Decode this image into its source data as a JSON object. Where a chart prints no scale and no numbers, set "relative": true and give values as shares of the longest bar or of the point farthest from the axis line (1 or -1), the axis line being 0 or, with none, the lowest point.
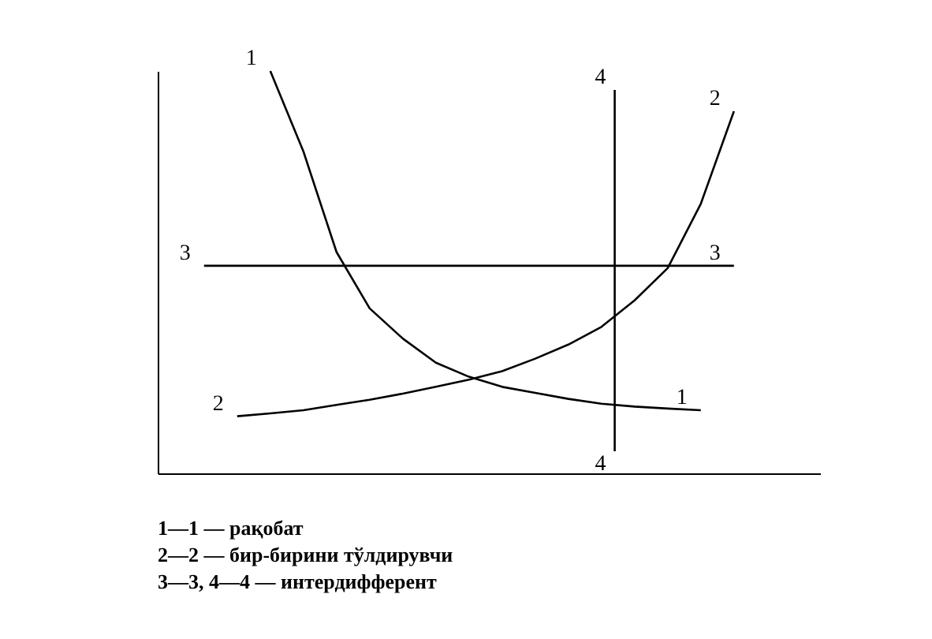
{
  "chart_data": {
    "type": "line",
    "relative": true,
    "grid": false,
    "legend": false,
    "marker": "none",
    "line_style": "solid",
    "categories": [
      null,
      null,
      null,
      null,
      null,
      null,
      null,
      null,
      null,
      null,
      null,
      null,
      null,
      null,
      null,
      null,
      null
    ],
    "series": [
      {
        "name": "1",
        "color": "#000000",
        "values": [
          null,
          null,
          1,
          0.8,
          0.55,
          0.41,
          0.335,
          0.275,
          0.24,
          0.215,
          0.2,
          0.185,
          0.173,
          0.166,
          0.161,
          0.157,
          null
        ]
      },
      {
        "name": "2",
        "color": "#000000",
        "values": [
          null,
          0.142,
          0.149,
          0.157,
          0.17,
          0.183,
          0.198,
          0.215,
          0.233,
          0.254,
          0.285,
          0.32,
          0.364,
          0.43,
          0.51,
          0.67,
          0.9
        ]
      },
      {
        "name": "3",
        "color": "#000000",
        "values": [
          0.516,
          0.516,
          0.516,
          0.516,
          0.516,
          0.516,
          0.516,
          0.516,
          0.516,
          0.516,
          0.516,
          0.516,
          0.516,
          0.516,
          0.516,
          0.516,
          0.516
        ]
      }
    ],
    "annotations": [
      "4",
      "4",
      "1—1 — рақобат",
      "2—2 — бир-бирини тўлдирувчи",
      "3—3, 4—4 — интердифферент"
    ]
  }
}
